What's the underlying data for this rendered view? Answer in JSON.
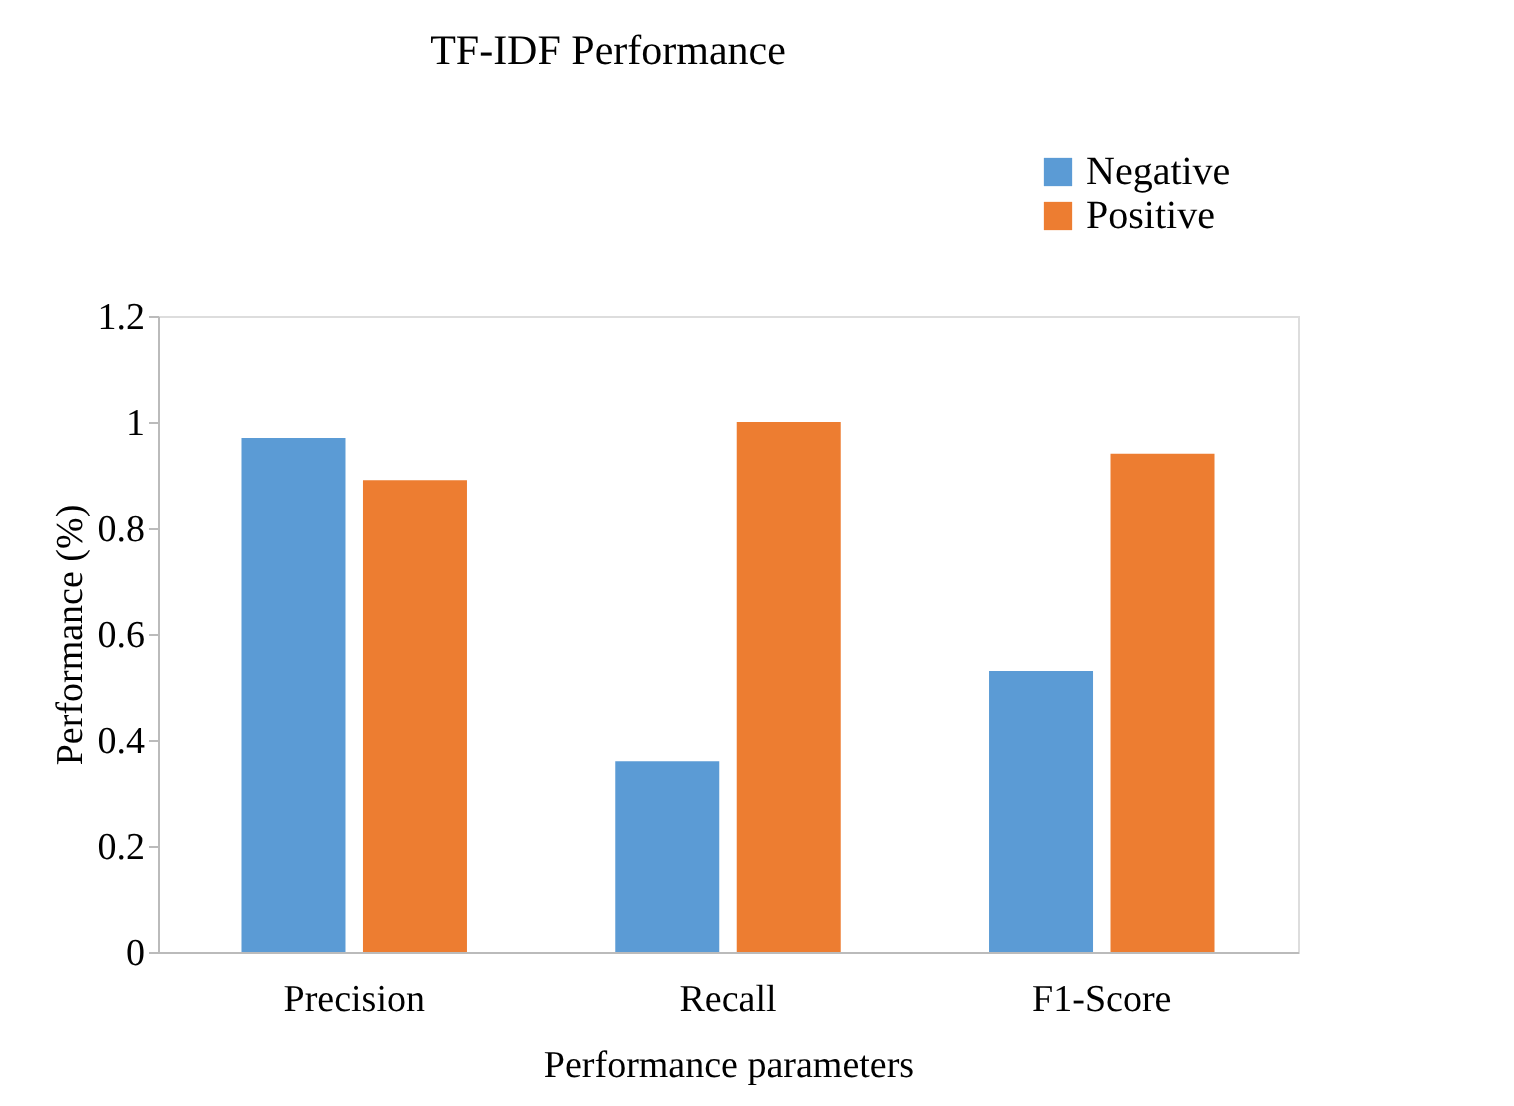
{
  "chart_data": {
    "type": "bar",
    "title": "TF-IDF Performance",
    "xlabel": "Performance parameters",
    "ylabel": "Performance (%)",
    "categories": [
      "Precision",
      "Recall",
      "F1-Score"
    ],
    "series": [
      {
        "name": "Negative",
        "color": "#5b9bd5",
        "values": [
          0.97,
          0.36,
          0.53
        ]
      },
      {
        "name": "Positive",
        "color": "#ed7d31",
        "values": [
          0.89,
          1.0,
          0.94
        ]
      }
    ],
    "ylim": [
      0,
      1.2
    ],
    "yticks": [
      0,
      0.2,
      0.4,
      0.6,
      0.8,
      1,
      1.2
    ],
    "grid": false,
    "legend": "top right"
  }
}
